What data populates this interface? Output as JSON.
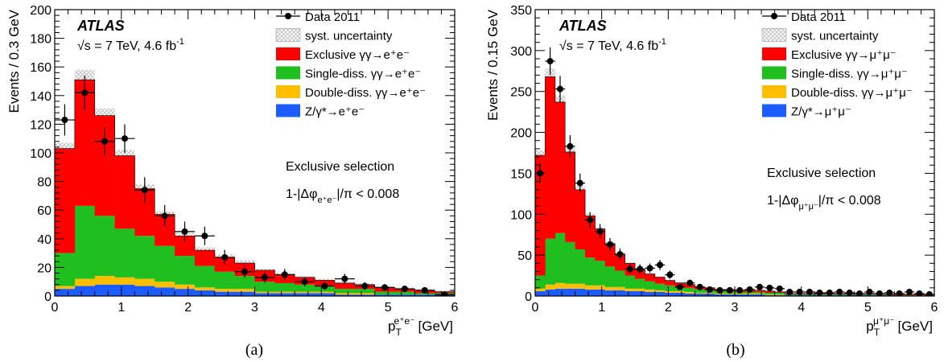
{
  "captions": [
    "(a)",
    "(b)"
  ],
  "colors": {
    "exclusive": "#ff0000",
    "single_diss": "#1fbf1f",
    "double_diss": "#ffbf00",
    "dy": "#1a5cff",
    "syst_uncertainty": "#b8b8b8",
    "data": "#000000"
  },
  "chart_data": [
    {
      "type": "histogram",
      "panel": "a",
      "experiment": "ATLAS",
      "energy_text": "√s = 7 TeV, 4.6 fb",
      "energy_sup": "-1",
      "xlabel": "p",
      "xlabel_sub": "T",
      "xlabel_sup": "e⁺e⁻",
      "xlabel_unit": "[GeV]",
      "ylabel": "Events / 0.3 GeV",
      "xlim": [
        0,
        6
      ],
      "ylim": [
        0,
        200
      ],
      "xticks": [
        0,
        1,
        2,
        3,
        4,
        5,
        6
      ],
      "yticks": [
        0,
        20,
        40,
        60,
        80,
        100,
        120,
        140,
        160,
        180,
        200
      ],
      "selection_text": "Exclusive selection",
      "cut_text": "1-|Δφ",
      "cut_sub": "e⁺e⁻",
      "cut_tail": "|/π < 0.008",
      "bin_width": 0.3,
      "bin_edges": [
        0,
        0.3,
        0.6,
        0.9,
        1.2,
        1.5,
        1.8,
        2.1,
        2.4,
        2.7,
        3.0,
        3.3,
        3.6,
        3.9,
        4.2,
        4.5,
        4.8,
        5.1,
        5.4,
        5.7,
        6.0
      ],
      "series": [
        {
          "name": "Z/γ*→e⁺e⁻",
          "key": "dy",
          "values": [
            5,
            7,
            8,
            8,
            7,
            6,
            5,
            4,
            3,
            3,
            2,
            2,
            2,
            2,
            1,
            1,
            1,
            1,
            1,
            1
          ]
        },
        {
          "name": "Double-diss. γγ→e⁺e⁻",
          "key": "double_diss",
          "values": [
            2,
            5,
            6,
            5,
            5,
            4,
            3,
            2,
            2,
            2,
            1,
            1,
            1,
            1,
            1,
            1,
            0,
            0,
            0,
            0
          ]
        },
        {
          "name": "Single-diss. γγ→e⁺e⁻",
          "key": "single_diss",
          "values": [
            23,
            51,
            42,
            34,
            30,
            25,
            20,
            15,
            12,
            9,
            7,
            6,
            5,
            4,
            3,
            3,
            2,
            2,
            1,
            1
          ]
        },
        {
          "name": "Exclusive γγ→e⁺e⁻",
          "key": "exclusive",
          "values": [
            73,
            88,
            70,
            51,
            33,
            22,
            14,
            11,
            10,
            9,
            8,
            6,
            5,
            4,
            4,
            3,
            3,
            2,
            2,
            1
          ]
        }
      ],
      "syst": [
        4,
        7,
        5,
        4,
        3,
        2,
        2,
        2,
        2,
        2,
        1,
        1,
        1,
        1,
        1,
        1,
        1,
        1,
        1,
        1
      ],
      "data": {
        "name": "Data 2011",
        "x": [
          0.15,
          0.45,
          0.75,
          1.05,
          1.35,
          1.65,
          1.95,
          2.25,
          2.55,
          2.85,
          3.15,
          3.45,
          3.75,
          4.05,
          4.35,
          4.65,
          4.95,
          5.25,
          5.55,
          5.85
        ],
        "y": [
          123,
          142,
          108,
          110,
          74,
          56,
          45,
          42,
          27,
          17,
          13,
          15,
          10,
          7,
          12,
          7,
          6,
          5,
          4,
          1
        ],
        "yerr": [
          11,
          12,
          10,
          10,
          9,
          7.5,
          7,
          6.5,
          5.2,
          4.1,
          3.6,
          3.9,
          3.2,
          2.6,
          3.5,
          2.6,
          2.4,
          2.2,
          2,
          1
        ]
      },
      "legend_order": [
        "data",
        "syst",
        "exclusive",
        "single_diss",
        "double_diss",
        "dy"
      ],
      "legend_syst": "syst. uncertainty"
    },
    {
      "type": "histogram",
      "panel": "b",
      "experiment": "ATLAS",
      "energy_text": "√s = 7 TeV, 4.6 fb",
      "energy_sup": "-1",
      "xlabel": "p",
      "xlabel_sub": "T",
      "xlabel_sup": "μ⁺μ⁻",
      "xlabel_unit": "[GeV]",
      "ylabel": "Events / 0.15 GeV",
      "xlim": [
        0,
        6
      ],
      "ylim": [
        0,
        350
      ],
      "xticks": [
        0,
        1,
        2,
        3,
        4,
        5,
        6
      ],
      "yticks": [
        0,
        50,
        100,
        150,
        200,
        250,
        300,
        350
      ],
      "selection_text": "Exclusive selection",
      "cut_text": "1-|Δφ",
      "cut_sub": "μ⁺μ⁻",
      "cut_tail": "|/π < 0.008",
      "bin_width": 0.15,
      "bin_edges": [
        0,
        0.15,
        0.3,
        0.45,
        0.6,
        0.75,
        0.9,
        1.05,
        1.2,
        1.35,
        1.5,
        1.65,
        1.8,
        1.95,
        2.1,
        2.25,
        2.4,
        2.55,
        2.7,
        2.85,
        3.0,
        3.15,
        3.3,
        3.45,
        3.6,
        3.75,
        3.9,
        4.05,
        4.2,
        4.35,
        4.5,
        4.65,
        4.8,
        4.95,
        5.1,
        5.25,
        5.4,
        5.55,
        5.7,
        5.85,
        6.0
      ],
      "series": [
        {
          "name": "Z/γ*→μ⁺μ⁻",
          "key": "dy",
          "values": [
            6,
            8,
            9,
            9,
            9,
            8,
            8,
            7,
            7,
            6,
            6,
            5,
            5,
            4,
            4,
            3,
            3,
            3,
            2,
            2,
            2,
            2,
            2,
            1,
            1,
            1,
            1,
            1,
            1,
            1,
            1,
            1,
            1,
            1,
            1,
            0,
            0,
            0,
            0,
            0
          ]
        },
        {
          "name": "Double-diss. γγ→μ⁺μ⁻",
          "key": "double_diss",
          "values": [
            3,
            6,
            7,
            6,
            6,
            5,
            5,
            4,
            4,
            3,
            3,
            3,
            2,
            2,
            2,
            2,
            1,
            1,
            1,
            1,
            1,
            1,
            1,
            1,
            1,
            0,
            0,
            0,
            0,
            0,
            0,
            0,
            0,
            0,
            0,
            0,
            0,
            0,
            0,
            0
          ]
        },
        {
          "name": "Single-diss. γγ→μ⁺μ⁻",
          "key": "single_diss",
          "values": [
            16,
            56,
            61,
            51,
            42,
            34,
            30,
            25,
            20,
            16,
            12,
            10,
            8,
            7,
            5,
            5,
            4,
            3,
            3,
            3,
            2,
            2,
            2,
            2,
            2,
            1,
            1,
            1,
            1,
            1,
            1,
            1,
            1,
            1,
            1,
            1,
            1,
            1,
            1,
            1
          ]
        },
        {
          "name": "Exclusive γγ→μ⁺μ⁻",
          "key": "exclusive",
          "values": [
            147,
            198,
            160,
            110,
            73,
            51,
            39,
            28,
            20,
            15,
            11,
            9,
            8,
            6,
            5,
            4,
            3,
            3,
            2,
            2,
            2,
            2,
            2,
            2,
            1,
            1,
            1,
            1,
            1,
            1,
            1,
            1,
            1,
            1,
            1,
            1,
            1,
            1,
            1,
            1
          ]
        }
      ],
      "syst": [
        6,
        10,
        8,
        6,
        4,
        3,
        2,
        2,
        2,
        1,
        1,
        1,
        1,
        1,
        1,
        1,
        1,
        1,
        1,
        1,
        1,
        1,
        1,
        1,
        1,
        1,
        1,
        1,
        1,
        1,
        1,
        1,
        1,
        1,
        1,
        1,
        1,
        1,
        1,
        1
      ],
      "data": {
        "name": "Data 2011",
        "x": [
          0.075,
          0.225,
          0.375,
          0.525,
          0.675,
          0.825,
          0.975,
          1.125,
          1.275,
          1.425,
          1.575,
          1.725,
          1.875,
          2.025,
          2.175,
          2.325,
          2.475,
          2.625,
          2.775,
          2.925,
          3.075,
          3.225,
          3.375,
          3.525,
          3.675,
          3.825,
          3.975,
          4.125,
          4.275,
          4.425,
          4.575,
          4.725,
          4.875,
          5.025,
          5.175,
          5.325,
          5.475,
          5.625,
          5.775,
          5.925
        ],
        "y": [
          150,
          287,
          253,
          183,
          138,
          93,
          79,
          63,
          51,
          33,
          33,
          34,
          38,
          26,
          11,
          16,
          11,
          8,
          7,
          7,
          7,
          8,
          11,
          10,
          9,
          5,
          5,
          5,
          4,
          4,
          5,
          4,
          3,
          5,
          3,
          4,
          3,
          5,
          3,
          2
        ],
        "yerr": [
          12,
          17,
          16,
          13.5,
          11.7,
          9.6,
          8.9,
          7.9,
          7.1,
          5.7,
          5.7,
          5.8,
          6.2,
          5.1,
          3.3,
          4,
          3.3,
          2.8,
          2.6,
          2.6,
          2.6,
          2.8,
          3.3,
          3.2,
          3,
          2.2,
          2.2,
          2.2,
          2,
          2,
          2.2,
          2,
          1.7,
          2.2,
          1.7,
          2,
          1.7,
          2.2,
          1.7,
          1.4
        ]
      },
      "legend_order": [
        "data",
        "syst",
        "exclusive",
        "single_diss",
        "double_diss",
        "dy"
      ],
      "legend_syst": "syst. uncertainty"
    }
  ]
}
